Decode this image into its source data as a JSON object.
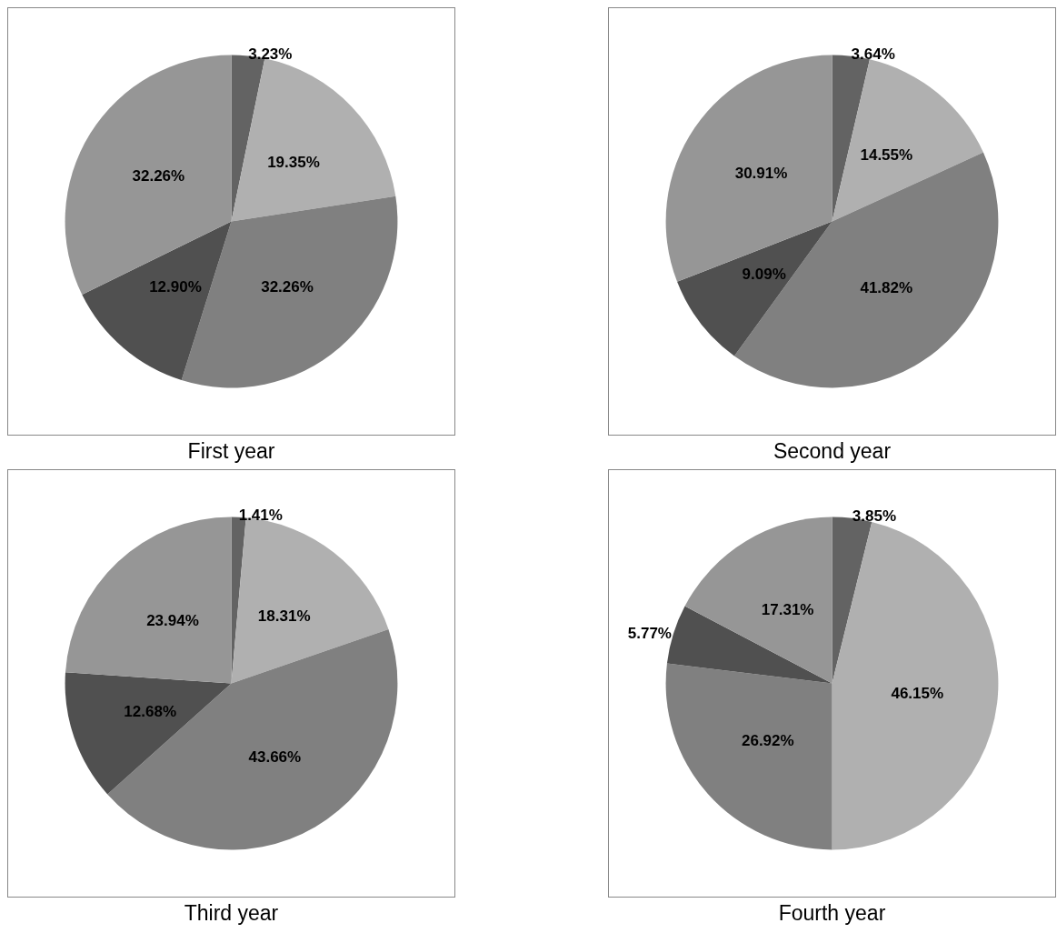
{
  "chart_data": [
    {
      "type": "pie",
      "title": "First year",
      "categories": [
        null,
        null,
        null,
        null,
        null
      ],
      "values": [
        3.23,
        19.35,
        32.26,
        12.9,
        32.26
      ],
      "value_labels": [
        "3.23%",
        "19.35%",
        "32.26%",
        "12.90%",
        "32.26%"
      ],
      "colors": [
        "#636363",
        "#b0b0b0",
        "#808080",
        "#505050",
        "#969696"
      ]
    },
    {
      "type": "pie",
      "title": "Second year",
      "categories": [
        null,
        null,
        null,
        null,
        null
      ],
      "values": [
        3.64,
        14.55,
        41.82,
        9.09,
        30.91
      ],
      "value_labels": [
        "3.64%",
        "14.55%",
        "41.82%",
        "9.09%",
        "30.91%"
      ],
      "colors": [
        "#636363",
        "#b0b0b0",
        "#808080",
        "#505050",
        "#969696"
      ]
    },
    {
      "type": "pie",
      "title": "Third year",
      "categories": [
        null,
        null,
        null,
        null,
        null
      ],
      "values": [
        1.41,
        18.31,
        43.66,
        12.68,
        23.94
      ],
      "value_labels": [
        "1.41%",
        "18.31%",
        "43.66%",
        "12.68%",
        "23.94%"
      ],
      "colors": [
        "#636363",
        "#b0b0b0",
        "#808080",
        "#505050",
        "#969696"
      ]
    },
    {
      "type": "pie",
      "title": "Fourth year",
      "categories": [
        null,
        null,
        null,
        null,
        null
      ],
      "values": [
        3.85,
        46.15,
        26.92,
        5.77,
        17.31
      ],
      "value_labels": [
        "3.85%",
        "46.15%",
        "26.92%",
        "5.77%",
        "17.31%"
      ],
      "colors": [
        "#636363",
        "#b0b0b0",
        "#808080",
        "#505050",
        "#969696"
      ]
    }
  ]
}
